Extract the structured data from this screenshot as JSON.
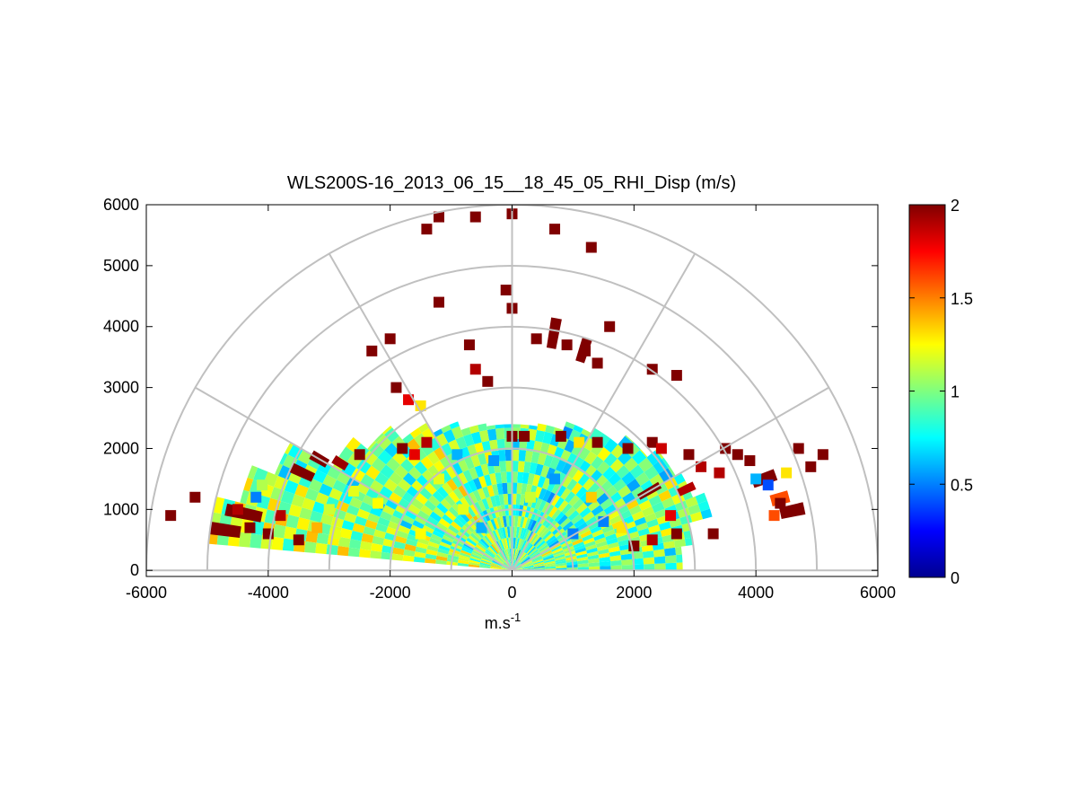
{
  "chart_data": {
    "type": "heatmap",
    "subtype": "polar-rhi",
    "title": "WLS200S-16_2013_06_15__18_45_05_RHI_Disp (m/s)",
    "xlabel_base": "m.s",
    "xlabel_sup": "-1",
    "ylabel": "",
    "xlim": [
      -6000,
      6000
    ],
    "ylim": [
      -100,
      6000
    ],
    "x_ticks": [
      "-6000",
      "-4000",
      "-2000",
      "0",
      "2000",
      "4000",
      "6000"
    ],
    "y_ticks": [
      "0",
      "1000",
      "2000",
      "3000",
      "4000",
      "5000",
      "6000"
    ],
    "polar_grid": {
      "range_rings": [
        1000,
        2000,
        3000,
        4000,
        5000,
        6000
      ],
      "spokes_deg": [
        0,
        30,
        60,
        90,
        120,
        150,
        180
      ]
    },
    "colorbar": {
      "colormap": "jet",
      "range": [
        0,
        2
      ],
      "ticks": [
        "0",
        "0.5",
        "1",
        "1.5",
        "2"
      ]
    },
    "grid": true,
    "sectors": [
      {
        "az": [
          0,
          8
        ],
        "r": [
          0,
          2800
        ],
        "value": 0.9
      },
      {
        "az": [
          8,
          15
        ],
        "r": [
          0,
          3000
        ],
        "value": 1.0
      },
      {
        "az": [
          15,
          22
        ],
        "r": [
          0,
          3400
        ],
        "value": 0.95
      },
      {
        "az": [
          22,
          30
        ],
        "r": [
          0,
          3200
        ],
        "value": 1.05
      },
      {
        "az": [
          30,
          40
        ],
        "r": [
          0,
          3100
        ],
        "value": 0.85
      },
      {
        "az": [
          40,
          50
        ],
        "r": [
          0,
          2900
        ],
        "value": 0.9
      },
      {
        "az": [
          50,
          60
        ],
        "r": [
          0,
          2700
        ],
        "value": 1.0
      },
      {
        "az": [
          60,
          70
        ],
        "r": [
          0,
          2600
        ],
        "value": 0.8
      },
      {
        "az": [
          70,
          80
        ],
        "r": [
          0,
          2450
        ],
        "value": 0.95
      },
      {
        "az": [
          80,
          90
        ],
        "r": [
          0,
          2400
        ],
        "value": 0.9
      },
      {
        "az": [
          90,
          100
        ],
        "r": [
          0,
          2400
        ],
        "value": 0.85
      },
      {
        "az": [
          100,
          110
        ],
        "r": [
          0,
          2450
        ],
        "value": 1.0
      },
      {
        "az": [
          110,
          120
        ],
        "r": [
          0,
          2600
        ],
        "value": 0.9
      },
      {
        "az": [
          120,
          130
        ],
        "r": [
          0,
          2800
        ],
        "value": 1.1
      },
      {
        "az": [
          130,
          140
        ],
        "r": [
          0,
          3100
        ],
        "value": 0.95
      },
      {
        "az": [
          140,
          150
        ],
        "r": [
          0,
          3400
        ],
        "value": 1.0
      },
      {
        "az": [
          150,
          158
        ],
        "r": [
          0,
          4200
        ],
        "value": 0.9
      },
      {
        "az": [
          158,
          166
        ],
        "r": [
          0,
          4600
        ],
        "value": 1.05
      },
      {
        "az": [
          166,
          175
        ],
        "r": [
          0,
          5000
        ],
        "value": 1.1
      }
    ],
    "cells": [
      {
        "x": 2300,
        "y": 2100,
        "value": 2.0
      },
      {
        "x": 2450,
        "y": 2000,
        "value": 1.85
      },
      {
        "x": 3700,
        "y": 1900,
        "value": 2.0
      },
      {
        "x": 3900,
        "y": 1800,
        "value": 2.0
      },
      {
        "x": 3400,
        "y": 1600,
        "value": 1.9
      },
      {
        "x": 4400,
        "y": 1100,
        "value": 2.0
      },
      {
        "x": 4300,
        "y": 900,
        "value": 1.6
      },
      {
        "x": 3300,
        "y": 600,
        "value": 2.0
      },
      {
        "x": 2700,
        "y": 600,
        "value": 2.0
      },
      {
        "x": 2300,
        "y": 500,
        "value": 1.9
      },
      {
        "x": 2000,
        "y": 400,
        "value": 2.0
      },
      {
        "x": 4200,
        "y": 1400,
        "value": 0.4
      },
      {
        "x": 4000,
        "y": 1500,
        "value": 0.6
      },
      {
        "x": 1500,
        "y": 800,
        "value": 0.5
      },
      {
        "x": 1800,
        "y": 700,
        "value": 1.3
      },
      {
        "x": -4300,
        "y": 700,
        "value": 2.0
      },
      {
        "x": -4000,
        "y": 600,
        "value": 2.0
      },
      {
        "x": -4500,
        "y": 1000,
        "value": 1.9
      },
      {
        "x": -3800,
        "y": 900,
        "value": 1.9
      },
      {
        "x": -3500,
        "y": 500,
        "value": 2.0
      },
      {
        "x": -5200,
        "y": 1200,
        "value": 2.0
      },
      {
        "x": -5600,
        "y": 900,
        "value": 2.0
      },
      {
        "x": -3200,
        "y": 700,
        "value": 1.4
      },
      {
        "x": -2900,
        "y": 600,
        "value": 1.2
      },
      {
        "x": -4200,
        "y": 1200,
        "value": 0.5
      },
      {
        "x": -4100,
        "y": 1400,
        "value": 1.1
      },
      {
        "x": -2500,
        "y": 1900,
        "value": 2.0
      },
      {
        "x": -1800,
        "y": 2000,
        "value": 2.0
      },
      {
        "x": -1600,
        "y": 1900,
        "value": 1.8
      },
      {
        "x": -1900,
        "y": 3000,
        "value": 2.0
      },
      {
        "x": -1700,
        "y": 2800,
        "value": 1.8
      },
      {
        "x": -1500,
        "y": 2700,
        "value": 1.3
      },
      {
        "x": -2300,
        "y": 3600,
        "value": 2.0
      },
      {
        "x": -2000,
        "y": 3800,
        "value": 2.0
      },
      {
        "x": -700,
        "y": 3700,
        "value": 2.0
      },
      {
        "x": -600,
        "y": 3300,
        "value": 1.9
      },
      {
        "x": -400,
        "y": 3100,
        "value": 2.0
      },
      {
        "x": 400,
        "y": 3800,
        "value": 2.0
      },
      {
        "x": 900,
        "y": 3700,
        "value": 2.0
      },
      {
        "x": 1200,
        "y": 3600,
        "value": 2.0
      },
      {
        "x": 1400,
        "y": 3400,
        "value": 2.0
      },
      {
        "x": -1200,
        "y": 5800,
        "value": 2.0
      },
      {
        "x": -1400,
        "y": 5600,
        "value": 2.0
      },
      {
        "x": 0,
        "y": 5850,
        "value": 2.0
      },
      {
        "x": -600,
        "y": 5800,
        "value": 2.0
      },
      {
        "x": -100,
        "y": 4600,
        "value": 2.0
      },
      {
        "x": 0,
        "y": 4300,
        "value": 2.0
      },
      {
        "x": 700,
        "y": 5600,
        "value": 2.0
      },
      {
        "x": 1300,
        "y": 5300,
        "value": 2.0
      },
      {
        "x": -1200,
        "y": 4400,
        "value": 2.0
      },
      {
        "x": 1600,
        "y": 4000,
        "value": 2.0
      },
      {
        "x": 2300,
        "y": 3300,
        "value": 2.0
      },
      {
        "x": 2700,
        "y": 3200,
        "value": 2.0
      },
      {
        "x": 4700,
        "y": 2000,
        "value": 2.0
      },
      {
        "x": 5100,
        "y": 1900,
        "value": 2.0
      },
      {
        "x": 4900,
        "y": 1700,
        "value": 2.0
      },
      {
        "x": 4500,
        "y": 1600,
        "value": 1.3
      },
      {
        "x": 200,
        "y": 2200,
        "value": 2.0
      },
      {
        "x": 0,
        "y": 2200,
        "value": 2.0
      },
      {
        "x": 1400,
        "y": 2100,
        "value": 2.0
      },
      {
        "x": 800,
        "y": 2200,
        "value": 2.0
      },
      {
        "x": 1100,
        "y": 2100,
        "value": 1.3
      },
      {
        "x": 1900,
        "y": 2000,
        "value": 2.0
      },
      {
        "x": -1400,
        "y": 2100,
        "value": 1.9
      },
      {
        "x": -900,
        "y": 1900,
        "value": 0.6
      },
      {
        "x": 700,
        "y": 1500,
        "value": 0.55
      },
      {
        "x": -1200,
        "y": 1500,
        "value": 1.2
      },
      {
        "x": 1300,
        "y": 1200,
        "value": 1.35
      },
      {
        "x": 2900,
        "y": 1900,
        "value": 2.0
      },
      {
        "x": 3100,
        "y": 1700,
        "value": 1.9
      },
      {
        "x": 3500,
        "y": 2000,
        "value": 2.0
      },
      {
        "x": 2600,
        "y": 900,
        "value": 1.8
      },
      {
        "x": -2600,
        "y": 1300,
        "value": 1.2
      },
      {
        "x": -2200,
        "y": 1100,
        "value": 1.25
      },
      {
        "x": -3000,
        "y": 1000,
        "value": 1.15
      },
      {
        "x": -800,
        "y": 1000,
        "value": 1.2
      },
      {
        "x": -300,
        "y": 1800,
        "value": 0.55
      },
      {
        "x": 300,
        "y": 1200,
        "value": 1.15
      },
      {
        "x": 1000,
        "y": 600,
        "value": 0.5
      },
      {
        "x": -1500,
        "y": 600,
        "value": 1.25
      },
      {
        "x": -500,
        "y": 700,
        "value": 0.6
      }
    ],
    "radial_bands": [
      {
        "az_deg": 155,
        "r": [
          3600,
          4000
        ],
        "value": 2.0
      },
      {
        "az_deg": 150,
        "r": [
          3500,
          3800
        ],
        "value": 2.0
      },
      {
        "az_deg": 148,
        "r": [
          3200,
          3450
        ],
        "value": 1.95
      },
      {
        "az_deg": 80,
        "r": [
          3700,
          4200
        ],
        "value": 2.0
      },
      {
        "az_deg": 72,
        "r": [
          3600,
          4000
        ],
        "value": 2.0
      },
      {
        "az_deg": 30,
        "r": [
          2400,
          2800
        ],
        "value": 2.0
      },
      {
        "az_deg": 25,
        "r": [
          3000,
          3300
        ],
        "value": 1.9
      },
      {
        "az_deg": 20,
        "r": [
          4200,
          4600
        ],
        "value": 2.0
      },
      {
        "az_deg": 15,
        "r": [
          4400,
          4700
        ],
        "value": 1.6
      },
      {
        "az_deg": 12,
        "r": [
          4500,
          4900
        ],
        "value": 2.0
      },
      {
        "az_deg": 168,
        "r": [
          4200,
          4800
        ],
        "value": 2.0
      },
      {
        "az_deg": 172,
        "r": [
          4500,
          5000
        ],
        "value": 2.0
      }
    ]
  }
}
